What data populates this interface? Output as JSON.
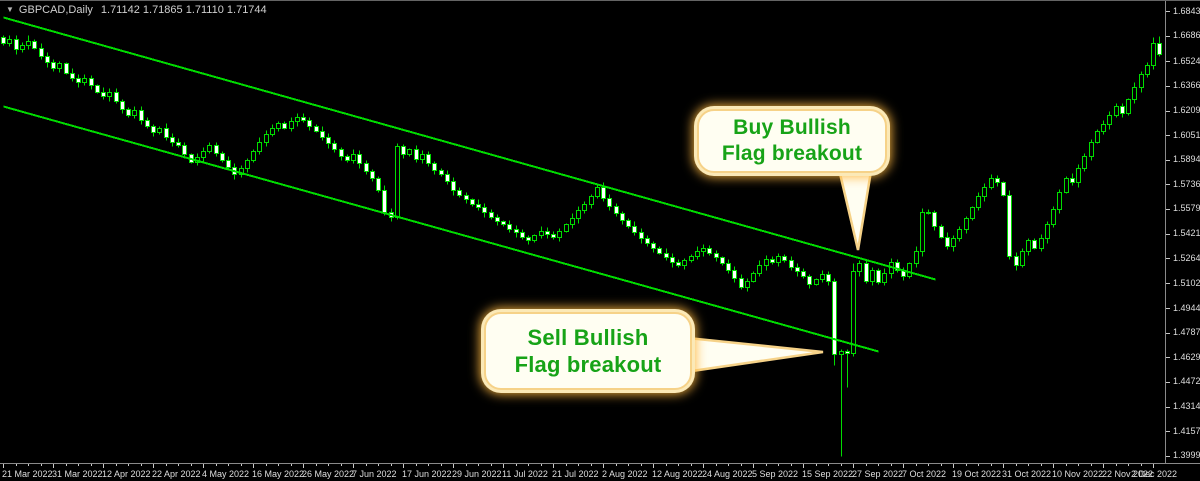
{
  "window": {
    "title_symbol": "GBPCAD,Daily",
    "title_ohlc": "1.71142 1.71865 1.71110 1.71744",
    "dropdown_icon": "triangle-down-icon"
  },
  "callouts": {
    "buy": {
      "line1": "Buy Bullish",
      "line2": "Flag breakout"
    },
    "sell": {
      "line1": "Sell Bullish",
      "line2": "Flag breakout"
    }
  },
  "colors": {
    "background": "#000000",
    "candle_outline": "#00DC00",
    "bull_fill": "#000000",
    "bear_fill": "#FFFFFF",
    "trendline": "#00DC00",
    "axis_text": "#DEDEDE",
    "axis_line": "#8A8A8A",
    "tick": "#C8C8C8",
    "callout_fill": "#FFFEF2",
    "callout_border": "#F6D288",
    "callout_glow": "#FFB840",
    "callout_text": "#17A317",
    "title_text": "#CFCFCF"
  },
  "price_axis": {
    "labels": [
      "1.68435",
      "1.66860",
      "1.65240",
      "1.63665",
      "1.62090",
      "1.60515",
      "1.58940",
      "1.57365",
      "1.55790",
      "1.54215",
      "1.52640",
      "1.51020",
      "1.49445",
      "1.47870",
      "1.46295",
      "1.44720",
      "1.43145",
      "1.41570",
      "1.39995"
    ]
  },
  "time_axis": {
    "labels": [
      "21 Mar 2022",
      "31 Mar 2022",
      "12 Apr 2022",
      "22 Apr 2022",
      "4 May 2022",
      "16 May 2022",
      "26 May 2022",
      "7 Jun 2022",
      "17 Jun 2022",
      "29 Jun 2022",
      "11 Jul 2022",
      "21 Jul 2022",
      "2 Aug 2022",
      "12 Aug 2022",
      "24 Aug 2022",
      "5 Sep 2022",
      "15 Sep 2022",
      "27 Sep 2022",
      "7 Oct 2022",
      "19 Oct 2022",
      "31 Oct 2022",
      "10 Nov 2022",
      "22 Nov 2022",
      "2 Dec 2022"
    ]
  },
  "chart_data": {
    "type": "candlestick",
    "symbol": "GBPCAD",
    "timeframe": "Daily",
    "ylim": [
      1.3953,
      1.691
    ],
    "bars_per_label": 8,
    "first_open": 1.668,
    "closes": [
      1.664,
      1.6665,
      1.66,
      1.663,
      1.6655,
      1.661,
      1.656,
      1.652,
      1.648,
      1.651,
      1.645,
      1.642,
      1.639,
      1.642,
      1.637,
      1.633,
      1.63,
      1.633,
      1.627,
      1.622,
      1.618,
      1.621,
      1.615,
      1.611,
      1.607,
      1.61,
      1.604,
      1.601,
      1.599,
      1.593,
      1.588,
      1.591,
      1.595,
      1.599,
      1.594,
      1.589,
      1.585,
      1.58,
      1.584,
      1.589,
      1.595,
      1.601,
      1.606,
      1.61,
      1.613,
      1.61,
      1.614,
      1.617,
      1.615,
      1.611,
      1.608,
      1.604,
      1.6,
      1.596,
      1.592,
      1.589,
      1.593,
      1.587,
      1.582,
      1.578,
      1.57,
      1.556,
      1.553,
      1.598,
      1.593,
      1.596,
      1.59,
      1.593,
      1.587,
      1.583,
      1.58,
      1.576,
      1.57,
      1.567,
      1.564,
      1.561,
      1.559,
      1.556,
      1.553,
      1.55,
      1.548,
      1.545,
      1.543,
      1.54,
      1.538,
      1.541,
      1.544,
      1.542,
      1.54,
      1.544,
      1.548,
      1.552,
      1.557,
      1.561,
      1.566,
      1.572,
      1.565,
      1.56,
      1.555,
      1.551,
      1.547,
      1.543,
      1.539,
      1.536,
      1.533,
      1.53,
      1.527,
      1.524,
      1.522,
      1.525,
      1.528,
      1.531,
      1.533,
      1.53,
      1.527,
      1.523,
      1.519,
      1.514,
      1.508,
      1.512,
      1.517,
      1.522,
      1.526,
      1.524,
      1.528,
      1.525,
      1.521,
      1.518,
      1.515,
      1.51,
      1.513,
      1.516,
      1.512,
      1.465,
      1.467,
      1.466,
      1.518,
      1.523,
      1.512,
      1.519,
      1.511,
      1.517,
      1.524,
      1.519,
      1.515,
      1.523,
      1.531,
      1.556,
      1.556,
      1.547,
      1.54,
      1.534,
      1.539,
      1.545,
      1.552,
      1.559,
      1.566,
      1.572,
      1.578,
      1.575,
      1.567,
      1.528,
      1.522,
      1.531,
      1.538,
      1.533,
      1.539,
      1.548,
      1.558,
      1.569,
      1.578,
      1.575,
      1.584,
      1.592,
      1.601,
      1.608,
      1.612,
      1.618,
      1.624,
      1.619,
      1.628,
      1.636,
      1.644,
      1.65,
      1.664,
      1.657
    ],
    "low_overrides": {
      "133": 1.458,
      "134": 1.4,
      "135": 1.444
    },
    "high_overrides": {
      "4": 1.669,
      "63": 1.6,
      "136": 1.523,
      "184": 1.668,
      "185": 1.6685
    },
    "trendlines": [
      {
        "name": "channel-upper",
        "bar1": 0,
        "price1": 1.6808,
        "bar2": 149.1,
        "price2": 1.5131
      },
      {
        "name": "channel-lower",
        "bar1": 0,
        "price1": 1.6238,
        "bar2": 140.0,
        "price2": 1.467
      }
    ],
    "annotations": [
      {
        "name": "buy-callout",
        "text": "Buy Bullish Flag breakout",
        "points_to_bar": 137,
        "points_to_price": 1.5095
      },
      {
        "name": "sell-callout",
        "text": "Sell Bullish Flag breakout",
        "points_to_bar": 131,
        "points_to_price": 1.466
      }
    ],
    "legend_position": "none",
    "grid": false
  }
}
